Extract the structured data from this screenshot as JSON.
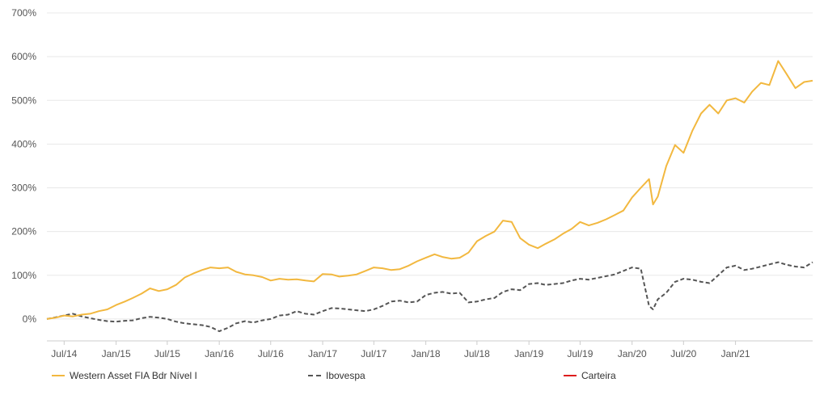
{
  "chart_data": {
    "type": "line",
    "title": "",
    "xlabel": "",
    "ylabel": "",
    "ylim": [
      -50,
      700
    ],
    "y_ticks": [
      0,
      100,
      200,
      300,
      400,
      500,
      600,
      700
    ],
    "y_tick_labels": [
      "0%",
      "100%",
      "200%",
      "300%",
      "400%",
      "500%",
      "600%",
      "700%"
    ],
    "x_range": [
      "2014-05-01",
      "2021-10-01"
    ],
    "x_ticks": [
      "2014-07-01",
      "2015-01-01",
      "2015-07-01",
      "2016-01-01",
      "2016-07-01",
      "2017-01-01",
      "2017-07-01",
      "2018-01-01",
      "2018-07-01",
      "2019-01-01",
      "2019-07-01",
      "2020-01-01",
      "2020-07-01",
      "2021-01-01"
    ],
    "x_tick_labels": [
      "Jul/14",
      "Jan/15",
      "Jul/15",
      "Jan/16",
      "Jul/16",
      "Jan/17",
      "Jul/17",
      "Jan/18",
      "Jul/18",
      "Jan/19",
      "Jul/19",
      "Jan/20",
      "Jul/20",
      "Jan/21"
    ],
    "grid": true,
    "legend_position": "bottom",
    "series": [
      {
        "name": "Western Asset FIA Bdr Nível I",
        "color": "#f2b83f",
        "style": "solid",
        "points": [
          [
            "2014-05-01",
            0
          ],
          [
            "2014-06-01",
            3
          ],
          [
            "2014-07-01",
            8
          ],
          [
            "2014-08-01",
            6
          ],
          [
            "2014-09-01",
            10
          ],
          [
            "2014-10-01",
            12
          ],
          [
            "2014-11-01",
            18
          ],
          [
            "2014-12-01",
            22
          ],
          [
            "2015-01-01",
            32
          ],
          [
            "2015-02-01",
            40
          ],
          [
            "2015-03-01",
            48
          ],
          [
            "2015-04-01",
            58
          ],
          [
            "2015-05-01",
            70
          ],
          [
            "2015-06-01",
            64
          ],
          [
            "2015-07-01",
            68
          ],
          [
            "2015-08-01",
            78
          ],
          [
            "2015-09-01",
            95
          ],
          [
            "2015-10-01",
            104
          ],
          [
            "2015-11-01",
            112
          ],
          [
            "2015-12-01",
            118
          ],
          [
            "2016-01-01",
            116
          ],
          [
            "2016-02-01",
            118
          ],
          [
            "2016-03-01",
            108
          ],
          [
            "2016-04-01",
            102
          ],
          [
            "2016-05-01",
            100
          ],
          [
            "2016-06-01",
            96
          ],
          [
            "2016-07-01",
            88
          ],
          [
            "2016-08-01",
            92
          ],
          [
            "2016-09-01",
            90
          ],
          [
            "2016-10-01",
            91
          ],
          [
            "2016-11-01",
            88
          ],
          [
            "2016-12-01",
            86
          ],
          [
            "2017-01-01",
            103
          ],
          [
            "2017-02-01",
            102
          ],
          [
            "2017-03-01",
            97
          ],
          [
            "2017-04-01",
            99
          ],
          [
            "2017-05-01",
            102
          ],
          [
            "2017-06-01",
            110
          ],
          [
            "2017-07-01",
            118
          ],
          [
            "2017-08-01",
            116
          ],
          [
            "2017-09-01",
            112
          ],
          [
            "2017-10-01",
            114
          ],
          [
            "2017-11-01",
            122
          ],
          [
            "2017-12-01",
            132
          ],
          [
            "2018-01-01",
            140
          ],
          [
            "2018-02-01",
            148
          ],
          [
            "2018-03-01",
            142
          ],
          [
            "2018-04-01",
            138
          ],
          [
            "2018-05-01",
            140
          ],
          [
            "2018-06-01",
            152
          ],
          [
            "2018-07-01",
            178
          ],
          [
            "2018-08-01",
            190
          ],
          [
            "2018-09-01",
            200
          ],
          [
            "2018-10-01",
            225
          ],
          [
            "2018-11-01",
            222
          ],
          [
            "2018-12-01",
            185
          ],
          [
            "2019-01-01",
            170
          ],
          [
            "2019-02-01",
            162
          ],
          [
            "2019-03-01",
            172
          ],
          [
            "2019-04-01",
            182
          ],
          [
            "2019-05-01",
            195
          ],
          [
            "2019-06-01",
            206
          ],
          [
            "2019-07-01",
            222
          ],
          [
            "2019-08-01",
            214
          ],
          [
            "2019-09-01",
            220
          ],
          [
            "2019-10-01",
            228
          ],
          [
            "2019-11-01",
            238
          ],
          [
            "2019-12-01",
            248
          ],
          [
            "2020-01-01",
            278
          ],
          [
            "2020-02-01",
            300
          ],
          [
            "2020-03-01",
            320
          ],
          [
            "2020-03-15",
            262
          ],
          [
            "2020-04-01",
            280
          ],
          [
            "2020-05-01",
            350
          ],
          [
            "2020-06-01",
            398
          ],
          [
            "2020-07-01",
            380
          ],
          [
            "2020-08-01",
            430
          ],
          [
            "2020-09-01",
            470
          ],
          [
            "2020-10-01",
            490
          ],
          [
            "2020-11-01",
            470
          ],
          [
            "2020-12-01",
            500
          ],
          [
            "2021-01-01",
            505
          ],
          [
            "2021-02-01",
            495
          ],
          [
            "2021-03-01",
            520
          ],
          [
            "2021-04-01",
            540
          ],
          [
            "2021-05-01",
            535
          ],
          [
            "2021-06-01",
            590
          ],
          [
            "2021-07-01",
            560
          ],
          [
            "2021-08-01",
            528
          ],
          [
            "2021-09-01",
            542
          ],
          [
            "2021-10-01",
            545
          ]
        ]
      },
      {
        "name": "Ibovespa",
        "color": "#555555",
        "style": "dashed",
        "points": [
          [
            "2014-05-01",
            0
          ],
          [
            "2014-06-01",
            4
          ],
          [
            "2014-07-01",
            8
          ],
          [
            "2014-08-01",
            12
          ],
          [
            "2014-09-01",
            6
          ],
          [
            "2014-10-01",
            2
          ],
          [
            "2014-11-01",
            -2
          ],
          [
            "2014-12-01",
            -5
          ],
          [
            "2015-01-01",
            -6
          ],
          [
            "2015-02-01",
            -4
          ],
          [
            "2015-03-01",
            -3
          ],
          [
            "2015-04-01",
            2
          ],
          [
            "2015-05-01",
            5
          ],
          [
            "2015-06-01",
            3
          ],
          [
            "2015-07-01",
            0
          ],
          [
            "2015-08-01",
            -6
          ],
          [
            "2015-09-01",
            -10
          ],
          [
            "2015-10-01",
            -12
          ],
          [
            "2015-11-01",
            -14
          ],
          [
            "2015-12-01",
            -18
          ],
          [
            "2016-01-01",
            -28
          ],
          [
            "2016-02-01",
            -20
          ],
          [
            "2016-03-01",
            -10
          ],
          [
            "2016-04-01",
            -5
          ],
          [
            "2016-05-01",
            -8
          ],
          [
            "2016-06-01",
            -3
          ],
          [
            "2016-07-01",
            0
          ],
          [
            "2016-08-01",
            8
          ],
          [
            "2016-09-01",
            10
          ],
          [
            "2016-10-01",
            18
          ],
          [
            "2016-11-01",
            12
          ],
          [
            "2016-12-01",
            10
          ],
          [
            "2017-01-01",
            18
          ],
          [
            "2017-02-01",
            25
          ],
          [
            "2017-03-01",
            24
          ],
          [
            "2017-04-01",
            22
          ],
          [
            "2017-05-01",
            20
          ],
          [
            "2017-06-01",
            18
          ],
          [
            "2017-07-01",
            22
          ],
          [
            "2017-08-01",
            30
          ],
          [
            "2017-09-01",
            40
          ],
          [
            "2017-10-01",
            42
          ],
          [
            "2017-11-01",
            38
          ],
          [
            "2017-12-01",
            40
          ],
          [
            "2018-01-01",
            55
          ],
          [
            "2018-02-01",
            60
          ],
          [
            "2018-03-01",
            62
          ],
          [
            "2018-04-01",
            58
          ],
          [
            "2018-05-01",
            60
          ],
          [
            "2018-06-01",
            38
          ],
          [
            "2018-07-01",
            40
          ],
          [
            "2018-08-01",
            45
          ],
          [
            "2018-09-01",
            48
          ],
          [
            "2018-10-01",
            62
          ],
          [
            "2018-11-01",
            68
          ],
          [
            "2018-12-01",
            66
          ],
          [
            "2019-01-01",
            80
          ],
          [
            "2019-02-01",
            82
          ],
          [
            "2019-03-01",
            78
          ],
          [
            "2019-04-01",
            80
          ],
          [
            "2019-05-01",
            82
          ],
          [
            "2019-06-01",
            88
          ],
          [
            "2019-07-01",
            92
          ],
          [
            "2019-08-01",
            90
          ],
          [
            "2019-09-01",
            94
          ],
          [
            "2019-10-01",
            98
          ],
          [
            "2019-11-01",
            102
          ],
          [
            "2019-12-01",
            110
          ],
          [
            "2020-01-01",
            118
          ],
          [
            "2020-02-01",
            115
          ],
          [
            "2020-03-01",
            30
          ],
          [
            "2020-03-15",
            22
          ],
          [
            "2020-04-01",
            45
          ],
          [
            "2020-05-01",
            60
          ],
          [
            "2020-06-01",
            85
          ],
          [
            "2020-07-01",
            92
          ],
          [
            "2020-08-01",
            90
          ],
          [
            "2020-09-01",
            85
          ],
          [
            "2020-10-01",
            82
          ],
          [
            "2020-11-01",
            100
          ],
          [
            "2020-12-01",
            118
          ],
          [
            "2021-01-01",
            122
          ],
          [
            "2021-02-01",
            112
          ],
          [
            "2021-03-01",
            115
          ],
          [
            "2021-04-01",
            120
          ],
          [
            "2021-05-01",
            125
          ],
          [
            "2021-06-01",
            130
          ],
          [
            "2021-07-01",
            124
          ],
          [
            "2021-08-01",
            120
          ],
          [
            "2021-09-01",
            118
          ],
          [
            "2021-10-01",
            130
          ]
        ]
      }
    ],
    "legend": [
      {
        "name": "Western Asset FIA Bdr Nível I",
        "color": "#f2b83f",
        "style": "solid"
      },
      {
        "name": "Ibovespa",
        "color": "#555555",
        "style": "dashed"
      },
      {
        "name": "Carteira",
        "color": "#dd1c1c",
        "style": "solid"
      }
    ]
  }
}
